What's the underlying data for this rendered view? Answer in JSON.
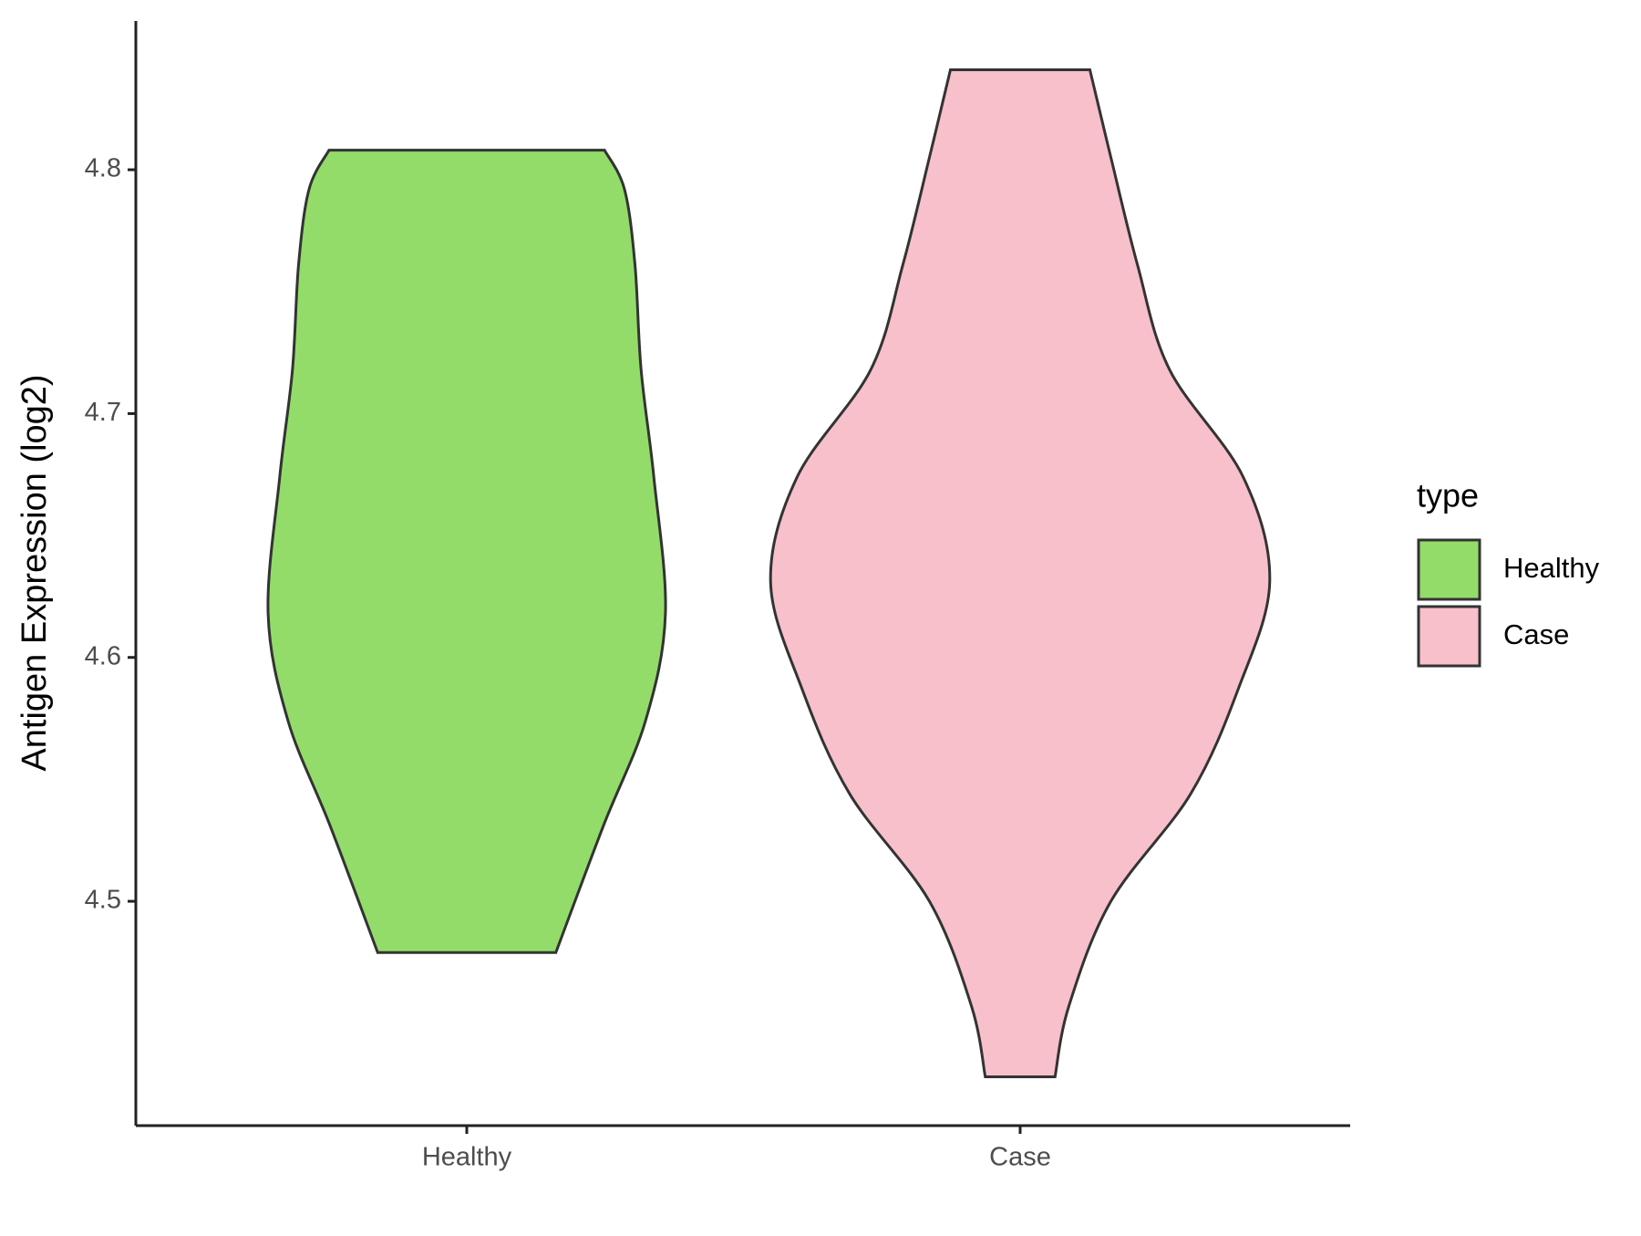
{
  "chart_data": {
    "type": "violin",
    "y_label": "Antigen Expression (log2)",
    "categories": [
      "Healthy",
      "Case"
    ],
    "series": [
      {
        "name": "Healthy",
        "color": "#93dc6a",
        "y": [
          4.808,
          4.792,
          4.761,
          4.718,
          4.674,
          4.618,
          4.574,
          4.531,
          4.479
        ],
        "half_width": [
          0.249,
          0.285,
          0.304,
          0.315,
          0.338,
          0.359,
          0.323,
          0.247,
          0.161
        ]
      },
      {
        "name": "Case",
        "color": "#f7c0cb",
        "y": [
          4.841,
          4.805,
          4.761,
          4.718,
          4.674,
          4.631,
          4.587,
          4.544,
          4.5,
          4.457,
          4.428
        ],
        "half_width": [
          0.126,
          0.164,
          0.212,
          0.27,
          0.403,
          0.451,
          0.394,
          0.308,
          0.164,
          0.088,
          0.063
        ]
      }
    ],
    "ylim": [
      4.408,
      4.861
    ],
    "yticks": [
      4.5,
      4.6,
      4.7,
      4.8
    ],
    "legend_title": "type",
    "legend": "right"
  }
}
